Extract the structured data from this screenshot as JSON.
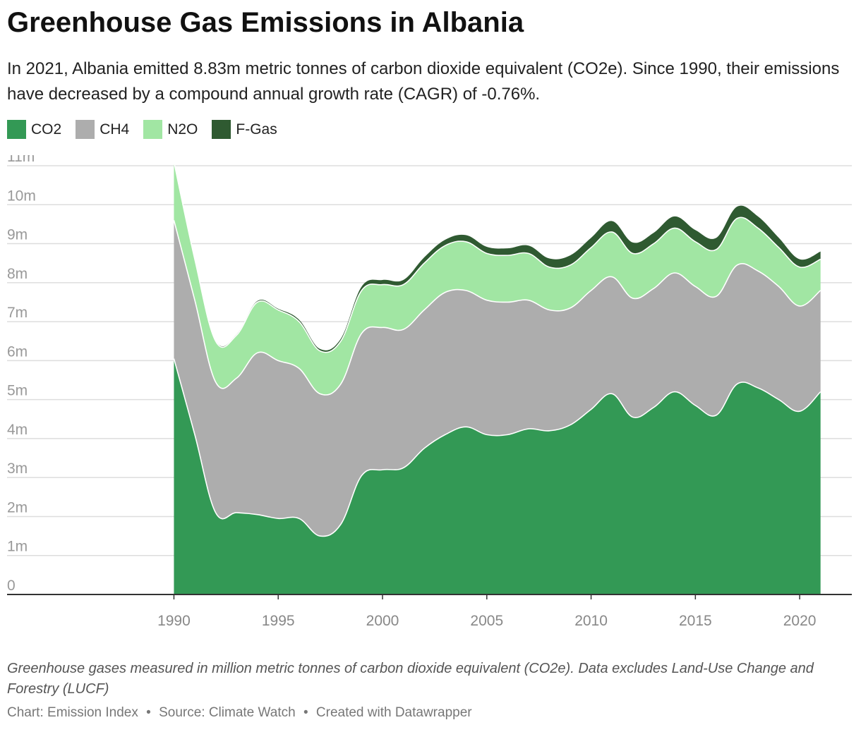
{
  "title": "Greenhouse Gas Emissions in Albania",
  "subtitle": "In 2021, Albania emitted 8.83m metric tonnes of carbon dioxide equivalent (CO2e). Since 1990, their emissions have decreased by a compound annual growth rate (CAGR) of -0.76%.",
  "notes": "Greenhouse gases measured in million metric tonnes of carbon dioxide equivalent (CO2e). Data excludes Land-Use Change and Forestry (LUCF)",
  "credits": {
    "chart": "Chart: Emission Index",
    "source": "Source: Climate Watch",
    "created": "Created with Datawrapper",
    "separator": "•"
  },
  "chart_data": {
    "type": "area",
    "stacked": true,
    "x": [
      1990,
      1991,
      1992,
      1993,
      1994,
      1995,
      1996,
      1997,
      1998,
      1999,
      2000,
      2001,
      2002,
      2003,
      2004,
      2005,
      2006,
      2007,
      2008,
      2009,
      2010,
      2011,
      2012,
      2013,
      2014,
      2015,
      2016,
      2017,
      2018,
      2019,
      2020,
      2021
    ],
    "series": [
      {
        "name": "CO2",
        "color": "#339955",
        "values": [
          6.05,
          4.1,
          2.1,
          2.1,
          2.05,
          1.95,
          1.95,
          1.5,
          1.8,
          3.05,
          3.2,
          3.25,
          3.75,
          4.1,
          4.3,
          4.1,
          4.1,
          4.25,
          4.2,
          4.35,
          4.75,
          5.15,
          4.55,
          4.8,
          5.2,
          4.85,
          4.6,
          5.4,
          5.3,
          5.0,
          4.7,
          5.2
        ]
      },
      {
        "name": "CH4",
        "color": "#adadad",
        "values": [
          3.55,
          3.45,
          3.35,
          3.45,
          4.15,
          4.05,
          3.85,
          3.65,
          3.6,
          3.65,
          3.65,
          3.55,
          3.55,
          3.65,
          3.5,
          3.45,
          3.4,
          3.3,
          3.1,
          3.0,
          3.05,
          3.0,
          3.05,
          3.05,
          3.05,
          3.05,
          3.05,
          3.05,
          3.0,
          2.9,
          2.7,
          2.6
        ]
      },
      {
        "name": "N2O",
        "color": "#a1e6a3",
        "values": [
          1.5,
          1.05,
          1.05,
          1.1,
          1.3,
          1.3,
          1.2,
          1.1,
          1.1,
          1.1,
          1.1,
          1.15,
          1.2,
          1.2,
          1.25,
          1.2,
          1.2,
          1.2,
          1.1,
          1.1,
          1.1,
          1.15,
          1.15,
          1.15,
          1.15,
          1.15,
          1.2,
          1.2,
          1.1,
          1.0,
          1.0,
          0.8
        ]
      },
      {
        "name": "F-Gas",
        "color": "#2f5a31",
        "values": [
          0,
          0,
          0.02,
          0.02,
          0.03,
          0.03,
          0.05,
          0.05,
          0.06,
          0.1,
          0.12,
          0.12,
          0.15,
          0.15,
          0.17,
          0.17,
          0.18,
          0.2,
          0.22,
          0.25,
          0.25,
          0.28,
          0.28,
          0.28,
          0.3,
          0.3,
          0.3,
          0.3,
          0.3,
          0.25,
          0.2,
          0.2
        ]
      }
    ],
    "y_ticks": [
      "0",
      "1m",
      "2m",
      "3m",
      "4m",
      "5m",
      "6m",
      "7m",
      "8m",
      "9m",
      "10m",
      "11m"
    ],
    "x_ticks": [
      "1990",
      "1995",
      "2000",
      "2005",
      "2010",
      "2015",
      "2020"
    ],
    "ylim": [
      0,
      11
    ],
    "xlim": [
      1982,
      2022.5
    ],
    "grid": true,
    "legend_position": "top-left",
    "xlabel": "",
    "ylabel": ""
  }
}
